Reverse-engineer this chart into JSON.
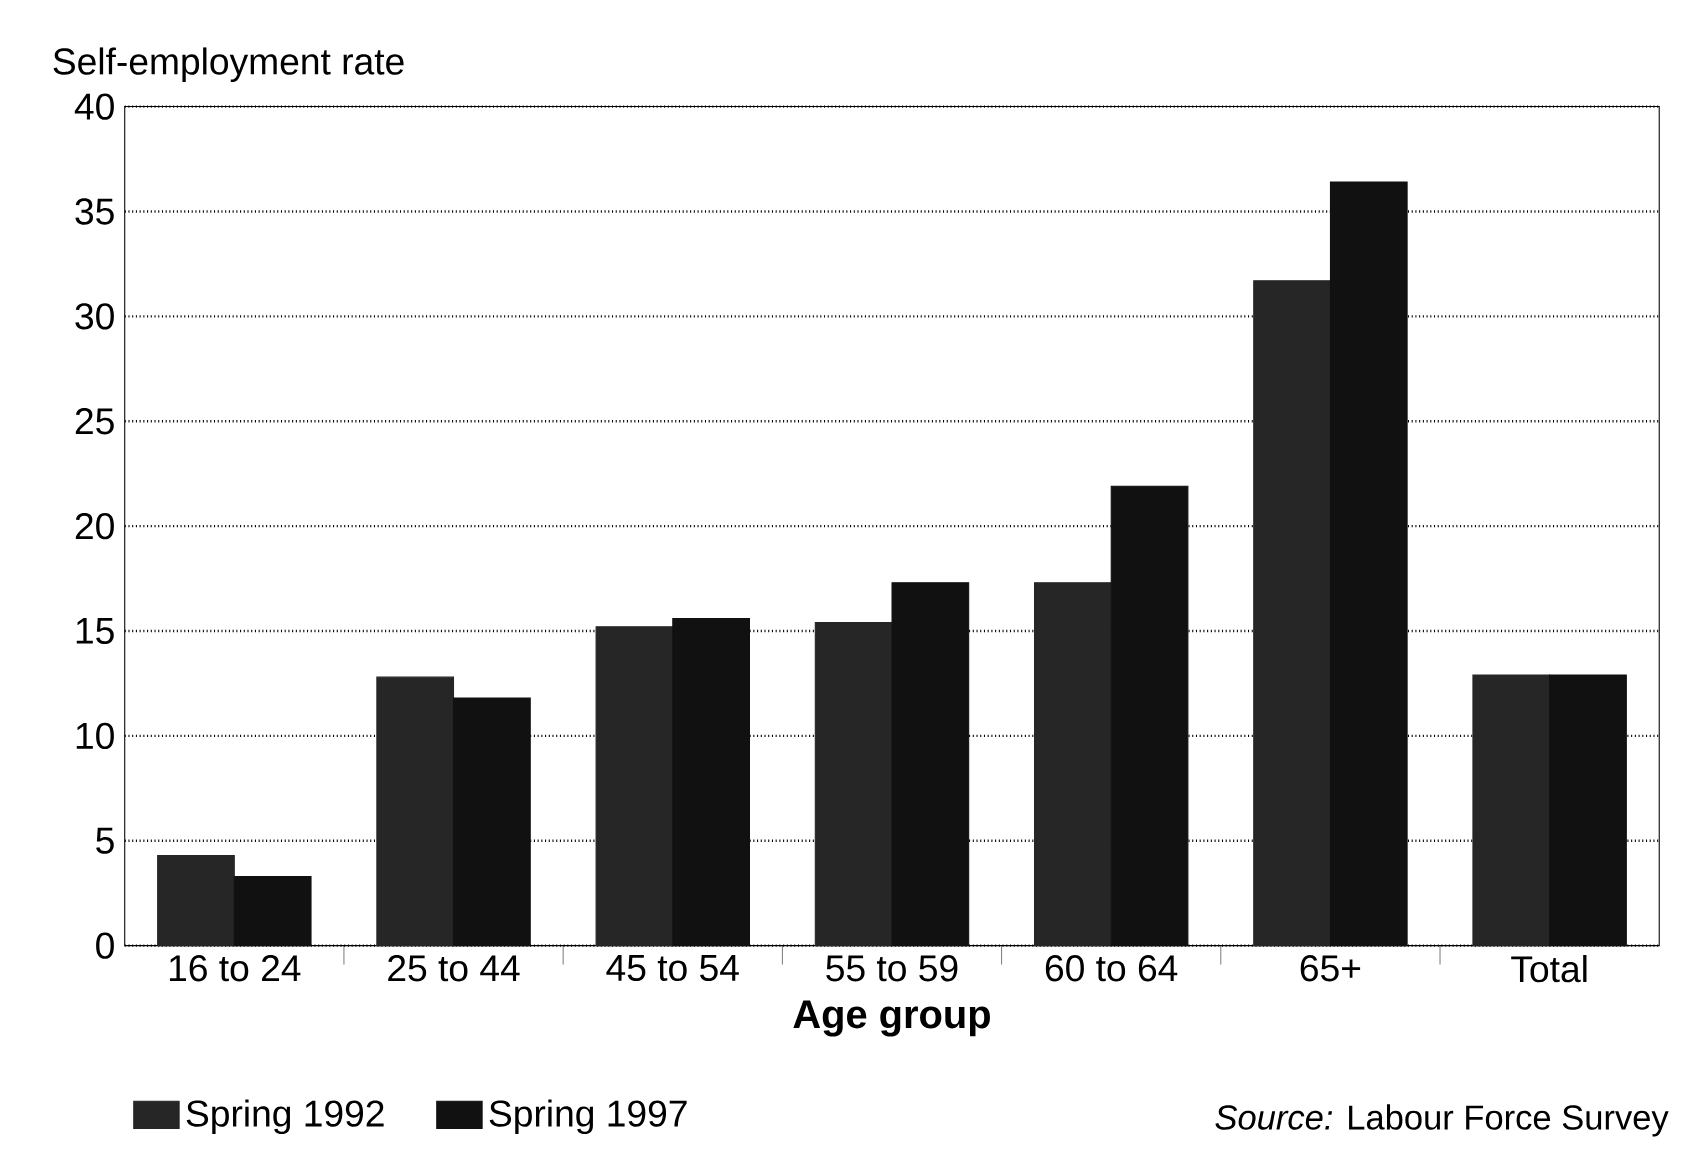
{
  "chart_data": {
    "type": "bar",
    "xlabel": "Age group",
    "ylabel": "Self-employment rate",
    "categories": [
      "16 to 24",
      "25 to 44",
      "45 to 54",
      "55 to 59",
      "60 to 64",
      "65+",
      "Total"
    ],
    "series": [
      {
        "name": "Spring 1992",
        "color": "#262626",
        "values": [
          4.3,
          12.8,
          15.2,
          15.4,
          17.3,
          31.7,
          12.9
        ]
      },
      {
        "name": "Spring 1997",
        "color": "#111111",
        "values": [
          3.3,
          11.8,
          15.6,
          17.3,
          21.9,
          36.4,
          12.9
        ]
      }
    ],
    "ylim": [
      0,
      40
    ],
    "yticks": [
      0,
      5,
      10,
      15,
      20,
      25,
      30,
      35,
      40
    ],
    "grid": "y",
    "line_style": "dotted",
    "legend": "bottom",
    "annotations": [
      "*Source:* Labour Force Survey"
    ]
  }
}
